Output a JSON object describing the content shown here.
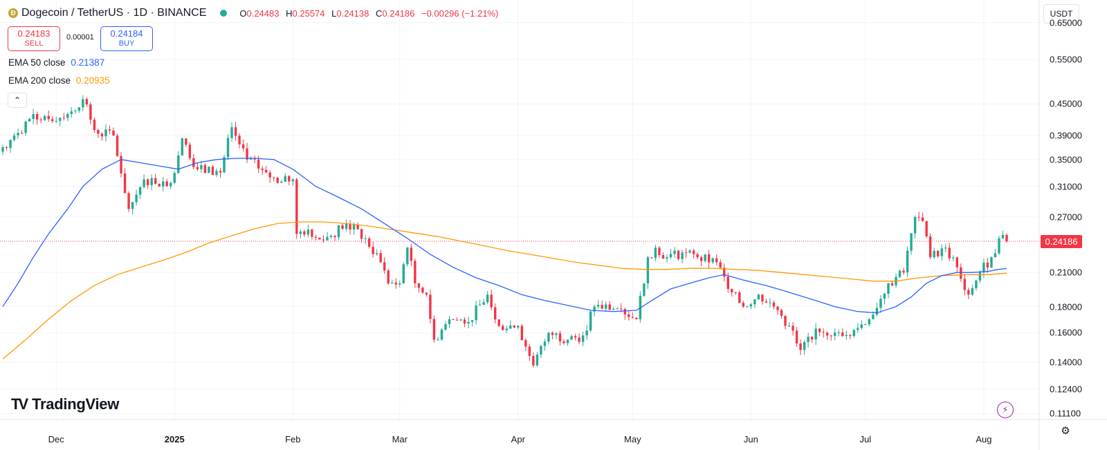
{
  "header": {
    "symbol": "Dogecoin / TetherUS · 1D · BINANCE",
    "coin_icon": "Ð",
    "ohlc": {
      "o_label": "O",
      "o": "0.24483",
      "h_label": "H",
      "h": "0.25574",
      "l_label": "L",
      "l": "0.24138",
      "c_label": "C",
      "c": "0.24186",
      "change": "−0.00296 (−1.21%)"
    }
  },
  "trade": {
    "sell_price": "0.24183",
    "sell_label": "SELL",
    "spread": "0.00001",
    "buy_price": "0.24184",
    "buy_label": "BUY"
  },
  "indicators": {
    "ema50_label": "EMA 50 close",
    "ema50_value": "0.21387",
    "ema200_label": "EMA 200 close",
    "ema200_value": "0.20935"
  },
  "controls": {
    "collapse_glyph": "⌃",
    "currency": "USDT",
    "settings_glyph": "⚙",
    "flash_glyph": "⚡"
  },
  "price_axis": {
    "labels": [
      "0.65000",
      "0.55000",
      "0.45000",
      "0.39000",
      "0.35000",
      "0.31000",
      "0.27000",
      "0.21000",
      "0.18000",
      "0.16000",
      "0.14000",
      "0.12400",
      "0.11100"
    ],
    "last_price": "0.24186"
  },
  "time_axis": {
    "labels": [
      "Dec",
      "2025",
      "Feb",
      "Mar",
      "Apr",
      "May",
      "Jun",
      "Jul",
      "Aug"
    ]
  },
  "branding": {
    "name": "TradingView",
    "mark": "TV"
  },
  "colors": {
    "up": "#22ab94",
    "down": "#f23645",
    "ema50": "#2962ff",
    "ema200": "#ff9800"
  },
  "chart_data": {
    "type": "candlestick",
    "title": "Dogecoin / TetherUS · 1D · BINANCE",
    "y_scale": "log",
    "ylim": [
      0.108,
      0.72
    ],
    "x_range_days": [
      0,
      263
    ],
    "month_ticks": [
      {
        "label": "Dec",
        "day": 14
      },
      {
        "label": "2025",
        "day": 45
      },
      {
        "label": "Feb",
        "day": 76
      },
      {
        "label": "Mar",
        "day": 104
      },
      {
        "label": "Apr",
        "day": 135
      },
      {
        "label": "May",
        "day": 165
      },
      {
        "label": "Jun",
        "day": 196
      },
      {
        "label": "Jul",
        "day": 226
      },
      {
        "label": "Aug",
        "day": 257
      }
    ],
    "keypoints": [
      {
        "day": 0,
        "close": 0.37
      },
      {
        "day": 4,
        "close": 0.395
      },
      {
        "day": 8,
        "close": 0.43
      },
      {
        "day": 12,
        "close": 0.42
      },
      {
        "day": 17,
        "close": 0.43
      },
      {
        "day": 21,
        "close": 0.46
      },
      {
        "day": 24,
        "close": 0.4
      },
      {
        "day": 29,
        "close": 0.39
      },
      {
        "day": 33,
        "close": 0.28
      },
      {
        "day": 37,
        "close": 0.32
      },
      {
        "day": 44,
        "close": 0.315
      },
      {
        "day": 47,
        "close": 0.385
      },
      {
        "day": 51,
        "close": 0.335
      },
      {
        "day": 57,
        "close": 0.33
      },
      {
        "day": 60,
        "close": 0.405
      },
      {
        "day": 64,
        "close": 0.35
      },
      {
        "day": 69,
        "close": 0.33
      },
      {
        "day": 72,
        "close": 0.315
      },
      {
        "day": 76,
        "close": 0.32
      },
      {
        "day": 77,
        "close": 0.25
      },
      {
        "day": 80,
        "close": 0.255
      },
      {
        "day": 84,
        "close": 0.243
      },
      {
        "day": 90,
        "close": 0.262
      },
      {
        "day": 95,
        "close": 0.245
      },
      {
        "day": 99,
        "close": 0.22
      },
      {
        "day": 101,
        "close": 0.2
      },
      {
        "day": 104,
        "close": 0.2
      },
      {
        "day": 106,
        "close": 0.235
      },
      {
        "day": 108,
        "close": 0.2
      },
      {
        "day": 111,
        "close": 0.19
      },
      {
        "day": 113,
        "close": 0.155
      },
      {
        "day": 117,
        "close": 0.17
      },
      {
        "day": 122,
        "close": 0.168
      },
      {
        "day": 127,
        "close": 0.19
      },
      {
        "day": 130,
        "close": 0.165
      },
      {
        "day": 135,
        "close": 0.165
      },
      {
        "day": 139,
        "close": 0.138
      },
      {
        "day": 143,
        "close": 0.16
      },
      {
        "day": 148,
        "close": 0.155
      },
      {
        "day": 152,
        "close": 0.158
      },
      {
        "day": 155,
        "close": 0.18
      },
      {
        "day": 162,
        "close": 0.178
      },
      {
        "day": 166,
        "close": 0.17
      },
      {
        "day": 169,
        "close": 0.225
      },
      {
        "day": 171,
        "close": 0.235
      },
      {
        "day": 174,
        "close": 0.225
      },
      {
        "day": 178,
        "close": 0.23
      },
      {
        "day": 182,
        "close": 0.225
      },
      {
        "day": 187,
        "close": 0.22
      },
      {
        "day": 190,
        "close": 0.195
      },
      {
        "day": 194,
        "close": 0.18
      },
      {
        "day": 198,
        "close": 0.19
      },
      {
        "day": 202,
        "close": 0.18
      },
      {
        "day": 206,
        "close": 0.165
      },
      {
        "day": 209,
        "close": 0.148
      },
      {
        "day": 213,
        "close": 0.163
      },
      {
        "day": 218,
        "close": 0.16
      },
      {
        "day": 223,
        "close": 0.162
      },
      {
        "day": 227,
        "close": 0.17
      },
      {
        "day": 232,
        "close": 0.2
      },
      {
        "day": 236,
        "close": 0.21
      },
      {
        "day": 239,
        "close": 0.27
      },
      {
        "day": 241,
        "close": 0.265
      },
      {
        "day": 243,
        "close": 0.225
      },
      {
        "day": 247,
        "close": 0.235
      },
      {
        "day": 250,
        "close": 0.215
      },
      {
        "day": 253,
        "close": 0.19
      },
      {
        "day": 256,
        "close": 0.21
      },
      {
        "day": 259,
        "close": 0.225
      },
      {
        "day": 261,
        "close": 0.245
      },
      {
        "day": 263,
        "close": 0.24186
      }
    ],
    "ema50": [
      [
        0,
        0.18
      ],
      [
        4,
        0.2
      ],
      [
        8,
        0.225
      ],
      [
        12,
        0.25
      ],
      [
        17,
        0.28
      ],
      [
        21,
        0.31
      ],
      [
        26,
        0.335
      ],
      [
        31,
        0.35
      ],
      [
        36,
        0.345
      ],
      [
        41,
        0.34
      ],
      [
        46,
        0.335
      ],
      [
        51,
        0.345
      ],
      [
        56,
        0.35
      ],
      [
        61,
        0.352
      ],
      [
        66,
        0.352
      ],
      [
        71,
        0.35
      ],
      [
        76,
        0.335
      ],
      [
        82,
        0.31
      ],
      [
        88,
        0.295
      ],
      [
        94,
        0.28
      ],
      [
        100,
        0.262
      ],
      [
        106,
        0.245
      ],
      [
        112,
        0.228
      ],
      [
        118,
        0.215
      ],
      [
        124,
        0.205
      ],
      [
        130,
        0.198
      ],
      [
        136,
        0.19
      ],
      [
        142,
        0.185
      ],
      [
        148,
        0.181
      ],
      [
        154,
        0.177
      ],
      [
        160,
        0.176
      ],
      [
        166,
        0.177
      ],
      [
        170,
        0.185
      ],
      [
        175,
        0.195
      ],
      [
        180,
        0.2
      ],
      [
        185,
        0.205
      ],
      [
        189,
        0.208
      ],
      [
        194,
        0.203
      ],
      [
        200,
        0.198
      ],
      [
        206,
        0.192
      ],
      [
        212,
        0.186
      ],
      [
        218,
        0.18
      ],
      [
        224,
        0.176
      ],
      [
        229,
        0.175
      ],
      [
        234,
        0.18
      ],
      [
        238,
        0.188
      ],
      [
        242,
        0.2
      ],
      [
        246,
        0.207
      ],
      [
        250,
        0.21
      ],
      [
        254,
        0.21
      ],
      [
        258,
        0.211
      ],
      [
        261,
        0.213
      ],
      [
        263,
        0.21387
      ]
    ],
    "ema200": [
      [
        0,
        0.142
      ],
      [
        6,
        0.155
      ],
      [
        12,
        0.17
      ],
      [
        18,
        0.185
      ],
      [
        24,
        0.198
      ],
      [
        30,
        0.208
      ],
      [
        36,
        0.215
      ],
      [
        42,
        0.222
      ],
      [
        48,
        0.23
      ],
      [
        54,
        0.24
      ],
      [
        60,
        0.248
      ],
      [
        66,
        0.256
      ],
      [
        72,
        0.262
      ],
      [
        78,
        0.264
      ],
      [
        84,
        0.264
      ],
      [
        90,
        0.262
      ],
      [
        96,
        0.259
      ],
      [
        102,
        0.255
      ],
      [
        108,
        0.251
      ],
      [
        114,
        0.247
      ],
      [
        120,
        0.242
      ],
      [
        126,
        0.237
      ],
      [
        132,
        0.232
      ],
      [
        138,
        0.228
      ],
      [
        144,
        0.224
      ],
      [
        150,
        0.22
      ],
      [
        156,
        0.217
      ],
      [
        162,
        0.214
      ],
      [
        168,
        0.213
      ],
      [
        174,
        0.213
      ],
      [
        180,
        0.214
      ],
      [
        186,
        0.214
      ],
      [
        192,
        0.213
      ],
      [
        198,
        0.212
      ],
      [
        204,
        0.21
      ],
      [
        210,
        0.208
      ],
      [
        216,
        0.206
      ],
      [
        222,
        0.204
      ],
      [
        228,
        0.202
      ],
      [
        234,
        0.202
      ],
      [
        240,
        0.205
      ],
      [
        246,
        0.207
      ],
      [
        252,
        0.208
      ],
      [
        258,
        0.208
      ],
      [
        263,
        0.20935
      ]
    ]
  }
}
